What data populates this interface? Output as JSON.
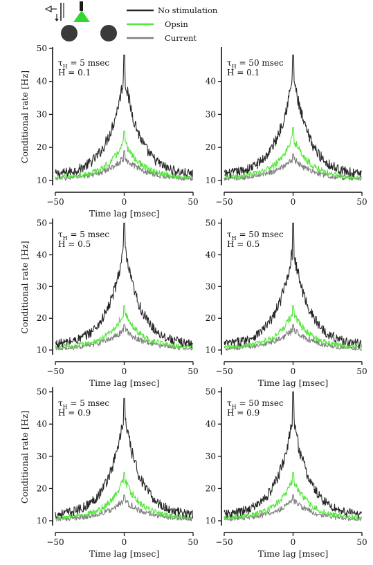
{
  "legend": {
    "items": [
      {
        "label": "No stimulation",
        "color": "#262626"
      },
      {
        "label": "Opsin",
        "color": "#55e63c"
      },
      {
        "label": "Current",
        "color": "#7f7f7f"
      }
    ],
    "schematic": {
      "neuron_color": "#33d633",
      "ball_color": "#3a3a3a"
    }
  },
  "chart_data": [
    {
      "type": "line",
      "panel": "row1-col1",
      "annotation": {
        "tau_prefix": "τ",
        "tau_sub": "H",
        "tau_text": " = 5 msec",
        "h_text": "H = 0.1"
      },
      "xlabel": "Time lag [msec]",
      "ylabel": "Conditional rate [Hz]",
      "xlim": [
        -52,
        52
      ],
      "ylim": [
        8.5,
        50
      ],
      "xticks": [
        -50,
        0,
        50
      ],
      "yticks": [
        10,
        20,
        30,
        40,
        50
      ],
      "series": [
        {
          "name": "No stimulation",
          "color": "#262626",
          "baseline": 11.5,
          "peak": 42,
          "tau": 12,
          "noise": 1.6,
          "peak_max": 48
        },
        {
          "name": "Opsin",
          "color": "#55e63c",
          "baseline": 10.8,
          "peak": 22,
          "tau": 12,
          "noise": 0.9,
          "peak_max": 25
        },
        {
          "name": "Current",
          "color": "#7f7f7f",
          "baseline": 10.3,
          "peak": 17,
          "tau": 15,
          "noise": 0.8,
          "peak_max": 19
        }
      ]
    },
    {
      "type": "line",
      "panel": "row1-col2",
      "annotation": {
        "tau_prefix": "τ",
        "tau_sub": "H",
        "tau_text": " = 50 msec",
        "h_text": "H = 0.1"
      },
      "xlabel": "",
      "ylabel": "",
      "xlim": [
        -52,
        52
      ],
      "ylim": [
        8.5,
        50
      ],
      "xticks": [
        -50,
        0,
        50
      ],
      "yticks": [
        10,
        20,
        30,
        40
      ],
      "series": [
        {
          "name": "No stimulation",
          "color": "#262626",
          "baseline": 11.5,
          "peak": 42,
          "tau": 12,
          "noise": 1.6,
          "peak_max": 48
        },
        {
          "name": "Opsin",
          "color": "#55e63c",
          "baseline": 10.8,
          "peak": 23,
          "tau": 12,
          "noise": 0.9,
          "peak_max": 26
        },
        {
          "name": "Current",
          "color": "#7f7f7f",
          "baseline": 10.3,
          "peak": 16.5,
          "tau": 15,
          "noise": 0.8,
          "peak_max": 18
        }
      ]
    },
    {
      "type": "line",
      "panel": "row2-col1",
      "annotation": {
        "tau_prefix": "τ",
        "tau_sub": "H",
        "tau_text": " = 5 msec",
        "h_text": "H = 0.5"
      },
      "xlabel": "Time lag [msec]",
      "ylabel": "Conditional rate [Hz]",
      "xlim": [
        -52,
        52
      ],
      "ylim": [
        8.5,
        51
      ],
      "xticks": [
        -50,
        0,
        50
      ],
      "yticks": [
        10,
        20,
        30,
        40,
        50
      ],
      "series": [
        {
          "name": "No stimulation",
          "color": "#262626",
          "baseline": 11.5,
          "peak": 43,
          "tau": 12,
          "noise": 1.6,
          "peak_max": 50
        },
        {
          "name": "Opsin",
          "color": "#55e63c",
          "baseline": 10.8,
          "peak": 22,
          "tau": 12,
          "noise": 0.9,
          "peak_max": 24
        },
        {
          "name": "Current",
          "color": "#7f7f7f",
          "baseline": 10.3,
          "peak": 16.5,
          "tau": 15,
          "noise": 0.8,
          "peak_max": 18
        }
      ]
    },
    {
      "type": "line",
      "panel": "row2-col2",
      "annotation": {
        "tau_prefix": "τ",
        "tau_sub": "H",
        "tau_text": " = 50 msec",
        "h_text": "H = 0.5"
      },
      "xlabel": "Time lag [msec]",
      "ylabel": "",
      "xlim": [
        -52,
        52
      ],
      "ylim": [
        8.5,
        51
      ],
      "xticks": [
        -50,
        0,
        50
      ],
      "yticks": [
        10,
        20,
        30,
        40,
        50
      ],
      "series": [
        {
          "name": "No stimulation",
          "color": "#262626",
          "baseline": 11.5,
          "peak": 42,
          "tau": 12,
          "noise": 1.6,
          "peak_max": 50
        },
        {
          "name": "Opsin",
          "color": "#55e63c",
          "baseline": 10.8,
          "peak": 22,
          "tau": 12,
          "noise": 0.9,
          "peak_max": 24
        },
        {
          "name": "Current",
          "color": "#7f7f7f",
          "baseline": 10.3,
          "peak": 16.5,
          "tau": 15,
          "noise": 0.8,
          "peak_max": 18
        }
      ]
    },
    {
      "type": "line",
      "panel": "row3-col1",
      "annotation": {
        "tau_prefix": "τ",
        "tau_sub": "H",
        "tau_text": " = 5 msec",
        "h_text": "H = 0.9"
      },
      "xlabel": "Time lag [msec]",
      "ylabel": "Conditional rate [Hz]",
      "xlim": [
        -52,
        52
      ],
      "ylim": [
        8.5,
        51
      ],
      "xticks": [
        -50,
        0,
        50
      ],
      "yticks": [
        10,
        20,
        30,
        40,
        50
      ],
      "series": [
        {
          "name": "No stimulation",
          "color": "#262626",
          "baseline": 11.5,
          "peak": 43,
          "tau": 12,
          "noise": 1.6,
          "peak_max": 48
        },
        {
          "name": "Opsin",
          "color": "#55e63c",
          "baseline": 10.8,
          "peak": 23,
          "tau": 12,
          "noise": 0.9,
          "peak_max": 25
        },
        {
          "name": "Current",
          "color": "#7f7f7f",
          "baseline": 10.3,
          "peak": 16.5,
          "tau": 15,
          "noise": 0.8,
          "peak_max": 18
        }
      ]
    },
    {
      "type": "line",
      "panel": "row3-col2",
      "annotation": {
        "tau_prefix": "τ",
        "tau_sub": "H",
        "tau_text": " = 50 msec",
        "h_text": "H = 0.9"
      },
      "xlabel": "Time lag [msec]",
      "ylabel": "",
      "xlim": [
        -52,
        52
      ],
      "ylim": [
        8.5,
        51
      ],
      "xticks": [
        -50,
        0,
        50
      ],
      "yticks": [
        10,
        20,
        30,
        40,
        50
      ],
      "series": [
        {
          "name": "No stimulation",
          "color": "#262626",
          "baseline": 11.5,
          "peak": 42,
          "tau": 12,
          "noise": 1.6,
          "peak_max": 50
        },
        {
          "name": "Opsin",
          "color": "#55e63c",
          "baseline": 10.8,
          "peak": 23,
          "tau": 12,
          "noise": 0.9,
          "peak_max": 25
        },
        {
          "name": "Current",
          "color": "#7f7f7f",
          "baseline": 10.3,
          "peak": 16.5,
          "tau": 15,
          "noise": 0.8,
          "peak_max": 18
        }
      ]
    }
  ]
}
